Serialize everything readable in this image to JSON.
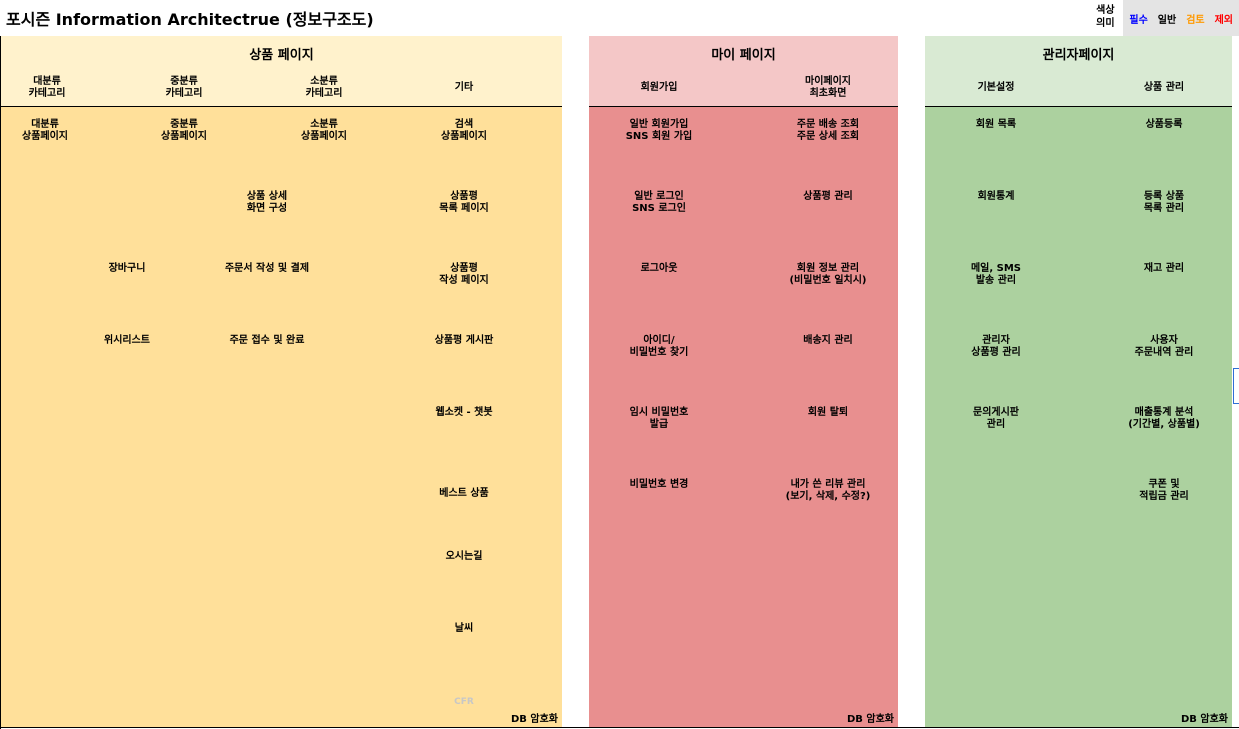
{
  "title": "포시즌 Information Architectrue (정보구조도)",
  "legend": {
    "label": "색상\n의미",
    "items": [
      {
        "text": "필수",
        "color": "#0000ff"
      },
      {
        "text": "일반",
        "color": "#000000"
      },
      {
        "text": "검토",
        "color": "#ff9900"
      },
      {
        "text": "제외",
        "color": "#ff0000"
      }
    ]
  },
  "colors": {
    "product_header": "#fff2cc",
    "product_body": "#ffe09a",
    "my_header": "#f4c7c7",
    "my_body": "#e88f8f",
    "admin_header": "#d9ead3",
    "admin_body": "#acd19f",
    "faded_text": "#c7c7c7"
  },
  "sections": {
    "product": {
      "title": "상품 페이지",
      "columns": [
        "대분류\n카테고리",
        "중분류\n카테고리",
        "소분류\n카테고리",
        "기타"
      ],
      "cells": {
        "c0": [
          "대분류\n상품페이지"
        ],
        "c1": [
          "중분류\n상품페이지",
          "장바구니",
          "위시리스트"
        ],
        "c2": [
          "소분류\n상품페이지",
          "상품 상세\n화면 구성",
          "주문서 작성 및 결제",
          "주문  접수 및 완료"
        ],
        "c3": [
          "검색\n상품페이지",
          "상품평\n목록 페이지",
          "상품평\n작성 페이지",
          "상품평 게시판",
          "웹소켓 - 챗봇",
          "베스트 상품",
          "오시는길",
          "날씨",
          "CFR"
        ]
      },
      "note": "DB 암호화"
    },
    "my": {
      "title": "마이 페이지",
      "columns": [
        "회원가입",
        "마이페이지\n최초화면"
      ],
      "cells": {
        "c0": [
          "일반 회원가입\nSNS 회원 가입",
          "일반 로그인\nSNS 로그인",
          "로그아웃",
          "아이디/\n비밀번호 찾기",
          "임시 비밀번호\n발급",
          "비밀번호 변경"
        ],
        "c1": [
          "주문 배송 조회\n주문 상세 조회",
          "상품평 관리",
          "회원 정보 관리\n(비밀번호 일치시)",
          "배송지 관리",
          "회원 탈퇴",
          "내가 쓴 리뷰 관리\n(보기, 삭제, 수정?)"
        ]
      },
      "note": "DB 암호화"
    },
    "admin": {
      "title": "관리자페이지",
      "columns": [
        "기본설정",
        "상품 관리"
      ],
      "cells": {
        "c0": [
          "회원 목록",
          "회원통계",
          "메일, SMS\n발송 관리",
          "관리자\n상품평 관리",
          "문의게시판\n관리"
        ],
        "c1": [
          "상품등록",
          "등록 상품\n목록 관리",
          "재고 관리",
          "사용자\n주문내역 관리",
          "매출통계 분석\n(기간별, 상품별)",
          "쿠폰 및\n적립금 관리"
        ]
      },
      "note": "DB 암호화"
    }
  }
}
